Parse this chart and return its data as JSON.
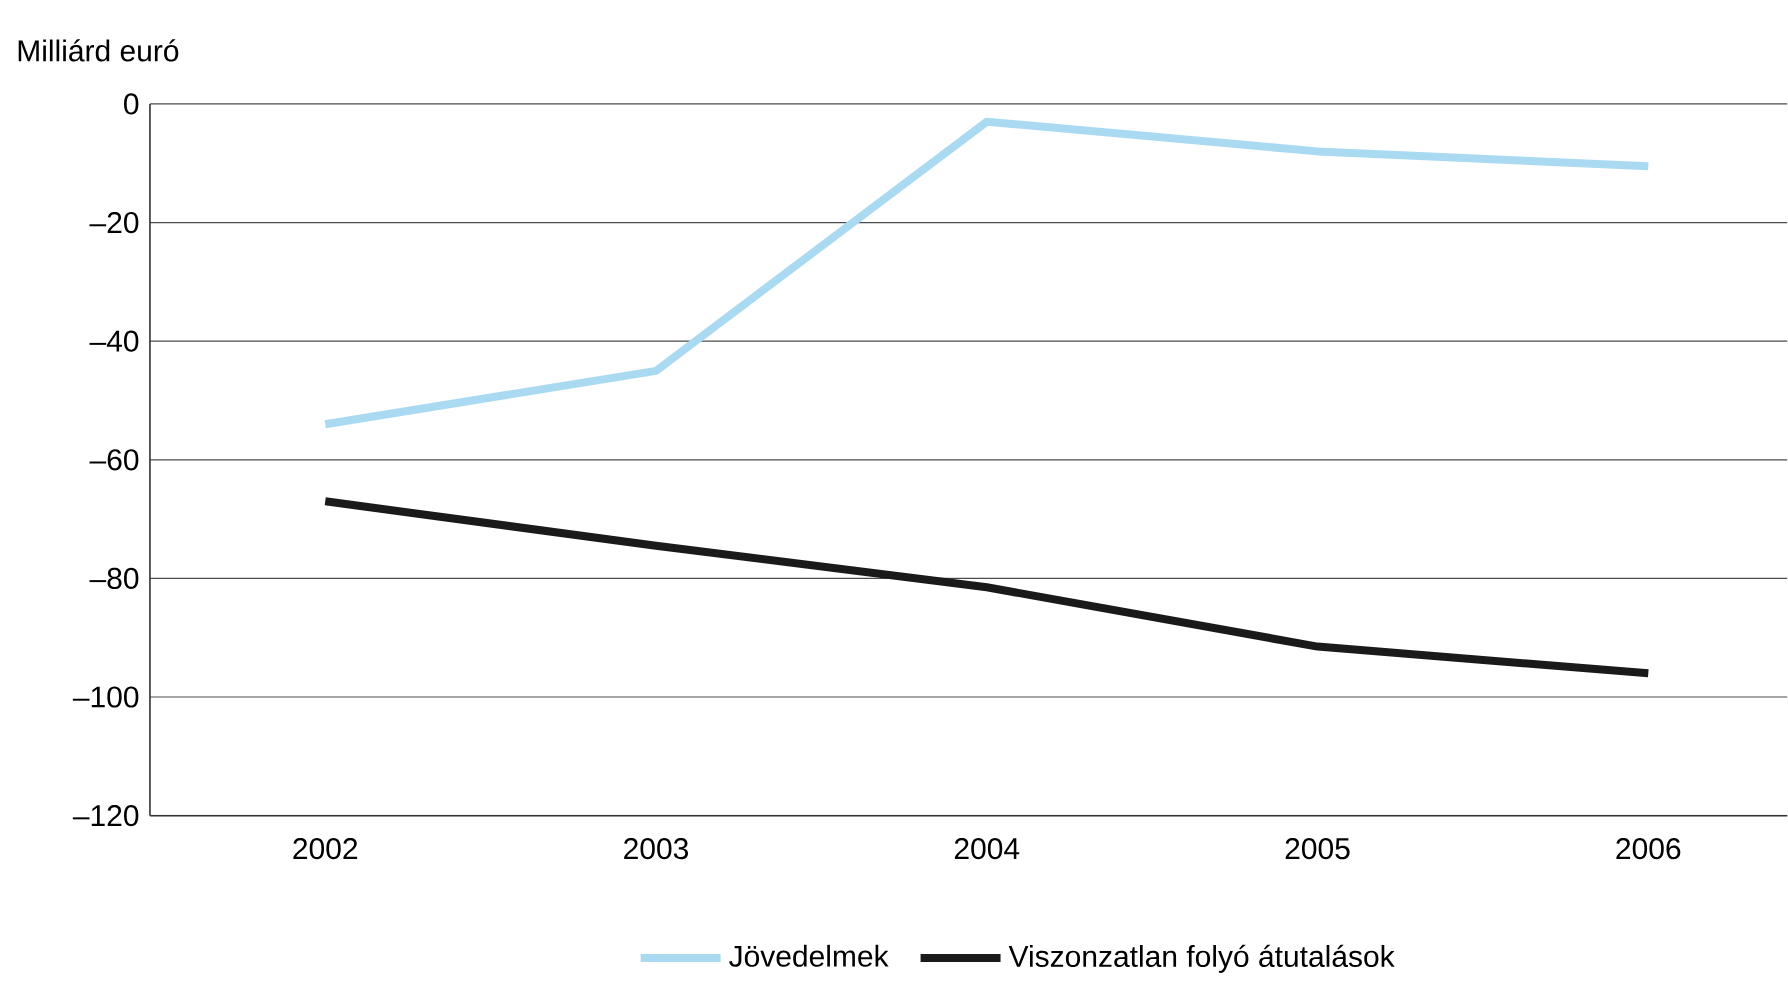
{
  "chart_data": {
    "type": "line",
    "ylabel": "Milliárd euró",
    "categories": [
      "2002",
      "2003",
      "2004",
      "2005",
      "2006"
    ],
    "series": [
      {
        "name": "Jövedelmek",
        "color": "#a9daf2",
        "values": [
          -54,
          -45,
          -3,
          -8,
          -10.5
        ]
      },
      {
        "name": "Viszonzatlan folyó átutalások",
        "color": "#1a1a1a",
        "values": [
          -67,
          -74.5,
          -81.5,
          -91.5,
          -96
        ]
      }
    ],
    "ylim": [
      -120,
      0
    ],
    "yticks": [
      {
        "value": 0,
        "label": "0"
      },
      {
        "value": -20,
        "label": "–20"
      },
      {
        "value": -40,
        "label": "–40"
      },
      {
        "value": -60,
        "label": "–60"
      },
      {
        "value": -80,
        "label": "–80"
      },
      {
        "value": -100,
        "label": "–100"
      },
      {
        "value": -120,
        "label": "–120"
      }
    ],
    "grid": "y",
    "legend": "bottom",
    "marker": "none",
    "line_style": "solid"
  }
}
